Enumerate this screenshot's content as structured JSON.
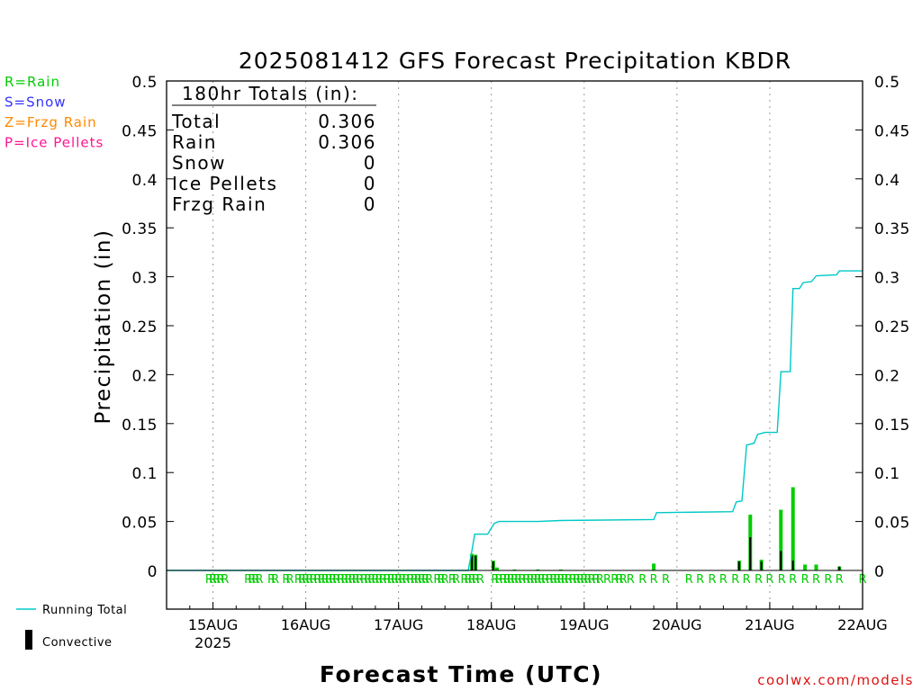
{
  "chart_data": {
    "type": "bar",
    "title": "2025081412 GFS Forecast Precipitation KBDR",
    "ylabel": "Precipitation (in)",
    "xlabel": "Forecast Time (UTC)",
    "ylim": [
      0,
      0.5
    ],
    "yticks": [
      "0",
      "0.05",
      "0.1",
      "0.15",
      "0.2",
      "0.25",
      "0.3",
      "0.35",
      "0.4",
      "0.45",
      "0.5"
    ],
    "x_range_days": [
      14.5,
      22.0
    ],
    "x_ticks": [
      {
        "day": 15,
        "label": "15AUG",
        "sublabel": "2025"
      },
      {
        "day": 16,
        "label": "16AUG",
        "sublabel": ""
      },
      {
        "day": 17,
        "label": "17AUG",
        "sublabel": ""
      },
      {
        "day": 18,
        "label": "18AUG",
        "sublabel": ""
      },
      {
        "day": 19,
        "label": "19AUG",
        "sublabel": ""
      },
      {
        "day": 20,
        "label": "20AUG",
        "sublabel": ""
      },
      {
        "day": 21,
        "label": "21AUG",
        "sublabel": ""
      },
      {
        "day": 22,
        "label": "22AUG",
        "sublabel": ""
      }
    ],
    "grid": "vertical dotted at each day",
    "legend_precip_types": [
      {
        "text": "R=Rain",
        "color": "#00cc00"
      },
      {
        "text": "S=Snow",
        "color": "#3333ff"
      },
      {
        "text": "Z=Frzg Rain",
        "color": "#ff8800"
      },
      {
        "text": "P=Ice Pellets",
        "color": "#ff1493"
      }
    ],
    "legend_series": [
      {
        "text": "Running Total",
        "color": "#00c8c8"
      },
      {
        "text": "Convective",
        "color": "#000000"
      }
    ],
    "totals": {
      "header": "180hr Totals (in):",
      "rows": [
        {
          "label": "Total",
          "value": "0.306"
        },
        {
          "label": "Rain",
          "value": "0.306"
        },
        {
          "label": "Snow",
          "value": "0"
        },
        {
          "label": "Ice Pellets",
          "value": "0"
        },
        {
          "label": "Frzg Rain",
          "value": "0"
        }
      ]
    },
    "series": [
      {
        "name": "Running Total",
        "color": "#00c8c8",
        "points": [
          [
            14.5,
            0
          ],
          [
            17.75,
            0
          ],
          [
            17.79,
            0.02
          ],
          [
            17.82,
            0.037
          ],
          [
            17.96,
            0.037
          ],
          [
            18.03,
            0.048
          ],
          [
            18.08,
            0.05
          ],
          [
            18.5,
            0.05
          ],
          [
            18.75,
            0.051
          ],
          [
            19.75,
            0.052
          ],
          [
            19.78,
            0.059
          ],
          [
            20.6,
            0.06
          ],
          [
            20.64,
            0.07
          ],
          [
            20.7,
            0.071
          ],
          [
            20.75,
            0.128
          ],
          [
            20.83,
            0.13
          ],
          [
            20.87,
            0.139
          ],
          [
            20.95,
            0.141
          ],
          [
            21.08,
            0.141
          ],
          [
            21.12,
            0.203
          ],
          [
            21.22,
            0.203
          ],
          [
            21.25,
            0.288
          ],
          [
            21.32,
            0.288
          ],
          [
            21.36,
            0.294
          ],
          [
            21.45,
            0.295
          ],
          [
            21.5,
            0.301
          ],
          [
            21.72,
            0.302
          ],
          [
            21.75,
            0.306
          ],
          [
            22.0,
            0.306
          ]
        ]
      }
    ],
    "bars_total": [
      [
        17.79,
        0.017
      ],
      [
        17.83,
        0.016
      ],
      [
        18.02,
        0.01
      ],
      [
        18.06,
        0.003
      ],
      [
        18.25,
        0.001
      ],
      [
        18.5,
        0.001
      ],
      [
        18.75,
        0.001
      ],
      [
        19.75,
        0.007
      ],
      [
        20.67,
        0.01
      ],
      [
        20.79,
        0.057
      ],
      [
        20.91,
        0.011
      ],
      [
        21.12,
        0.062
      ],
      [
        21.25,
        0.085
      ],
      [
        21.38,
        0.006
      ],
      [
        21.5,
        0.006
      ],
      [
        21.75,
        0.004
      ]
    ],
    "bars_convective": [
      [
        17.79,
        0.015
      ],
      [
        17.83,
        0.015
      ],
      [
        18.02,
        0.009
      ],
      [
        20.67,
        0.009
      ],
      [
        20.79,
        0.034
      ],
      [
        20.91,
        0.009
      ],
      [
        21.12,
        0.02
      ],
      [
        21.25,
        0.01
      ],
      [
        21.75,
        0.004
      ]
    ],
    "precip_type_markers": {
      "letter": "R",
      "color": "#00cc00",
      "days": [
        14.96,
        15.0,
        15.04,
        15.08,
        15.13,
        15.38,
        15.42,
        15.46,
        15.5,
        15.63,
        15.67,
        15.79,
        15.83,
        15.92,
        15.96,
        16.0,
        16.04,
        16.08,
        16.13,
        16.17,
        16.21,
        16.25,
        16.29,
        16.33,
        16.38,
        16.42,
        16.46,
        16.5,
        16.54,
        16.58,
        16.63,
        16.67,
        16.71,
        16.75,
        16.79,
        16.83,
        16.88,
        16.92,
        16.96,
        17.0,
        17.04,
        17.08,
        17.13,
        17.17,
        17.21,
        17.25,
        17.29,
        17.33,
        17.42,
        17.46,
        17.5,
        17.58,
        17.62,
        17.71,
        17.75,
        17.79,
        17.83,
        17.88,
        18.04,
        18.08,
        18.13,
        18.17,
        18.21,
        18.25,
        18.29,
        18.33,
        18.38,
        18.42,
        18.46,
        18.5,
        18.54,
        18.58,
        18.63,
        18.67,
        18.71,
        18.75,
        18.79,
        18.83,
        18.88,
        18.92,
        18.96,
        19.0,
        19.04,
        19.08,
        19.13,
        19.17,
        19.25,
        19.33,
        19.38,
        19.42,
        19.5,
        19.63,
        19.75,
        19.88,
        20.13,
        20.25,
        20.38,
        20.5,
        20.63,
        20.75,
        20.88,
        21.0,
        21.13,
        21.25,
        21.38,
        21.5,
        21.63,
        21.75,
        22.0
      ]
    }
  },
  "credit": "coolwx.com/models"
}
